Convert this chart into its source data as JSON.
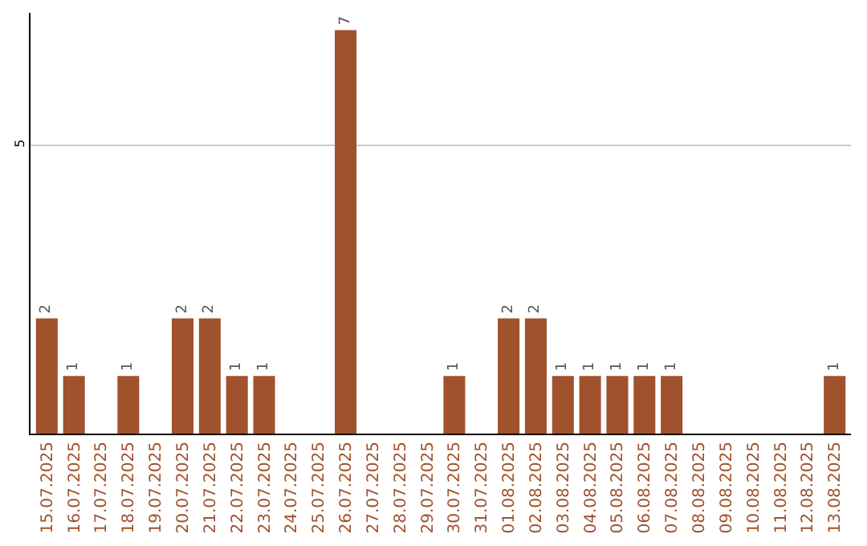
{
  "chart_data": {
    "type": "bar",
    "categories": [
      "15.07.2025",
      "16.07.2025",
      "17.07.2025",
      "18.07.2025",
      "19.07.2025",
      "20.07.2025",
      "21.07.2025",
      "22.07.2025",
      "23.07.2025",
      "24.07.2025",
      "25.07.2025",
      "26.07.2025",
      "27.07.2025",
      "28.07.2025",
      "29.07.2025",
      "30.07.2025",
      "31.07.2025",
      "01.08.2025",
      "02.08.2025",
      "03.08.2025",
      "04.08.2025",
      "05.08.2025",
      "06.08.2025",
      "07.08.2025",
      "08.08.2025",
      "09.08.2025",
      "10.08.2025",
      "11.08.2025",
      "12.08.2025",
      "13.08.2025"
    ],
    "values": [
      2,
      1,
      null,
      1,
      null,
      2,
      2,
      1,
      1,
      null,
      null,
      7,
      null,
      null,
      null,
      1,
      null,
      2,
      2,
      1,
      1,
      1,
      1,
      1,
      null,
      null,
      null,
      null,
      null,
      1
    ],
    "color": "#a0522d",
    "ylim": [
      0,
      7.3
    ],
    "yticks": [
      5
    ],
    "grid": "y",
    "legend": false,
    "data_labels": true
  }
}
